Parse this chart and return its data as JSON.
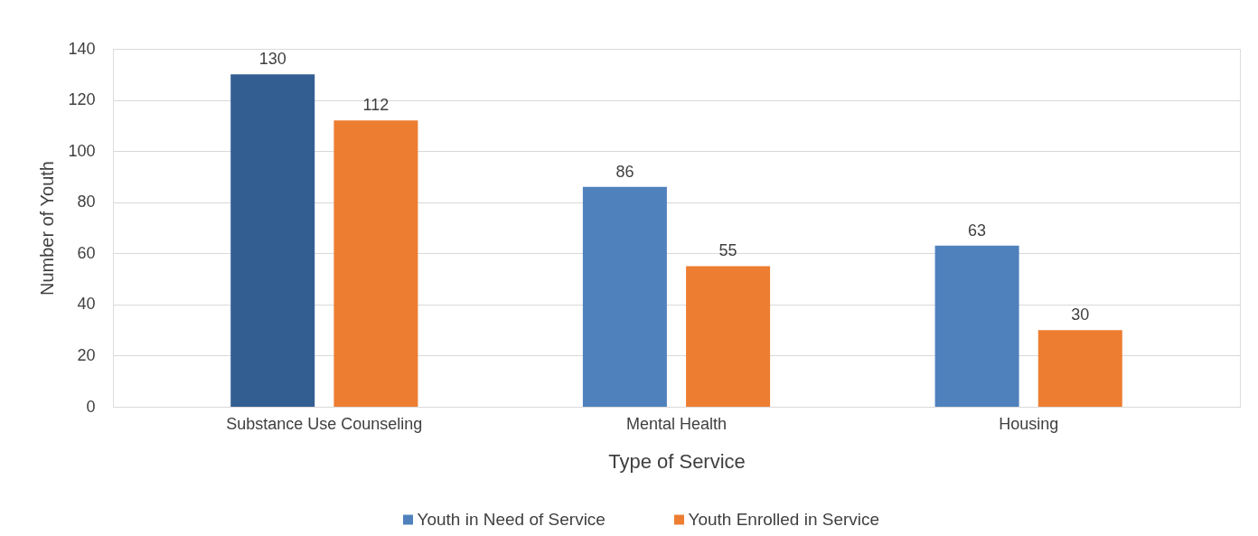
{
  "chart_data": {
    "type": "bar",
    "xlabel": "Type of Service",
    "ylabel": "Number of Youth",
    "categories": [
      "Substance Use Counseling",
      "Mental Health",
      "Housing"
    ],
    "series": [
      {
        "name": "Youth in Need of Service",
        "color": "#4f81bd",
        "colors": [
          "#335e91",
          "#4f81bd",
          "#4f81bd"
        ],
        "values": [
          130,
          86,
          63
        ]
      },
      {
        "name": "Youth Enrolled in Service",
        "color": "#ed7d31",
        "values": [
          112,
          55,
          30
        ]
      }
    ],
    "ylim": [
      0,
      140
    ],
    "yticks": [
      0,
      20,
      40,
      60,
      80,
      100,
      120,
      140
    ],
    "grid": "y",
    "legend": "bottom",
    "data_labels": true
  }
}
